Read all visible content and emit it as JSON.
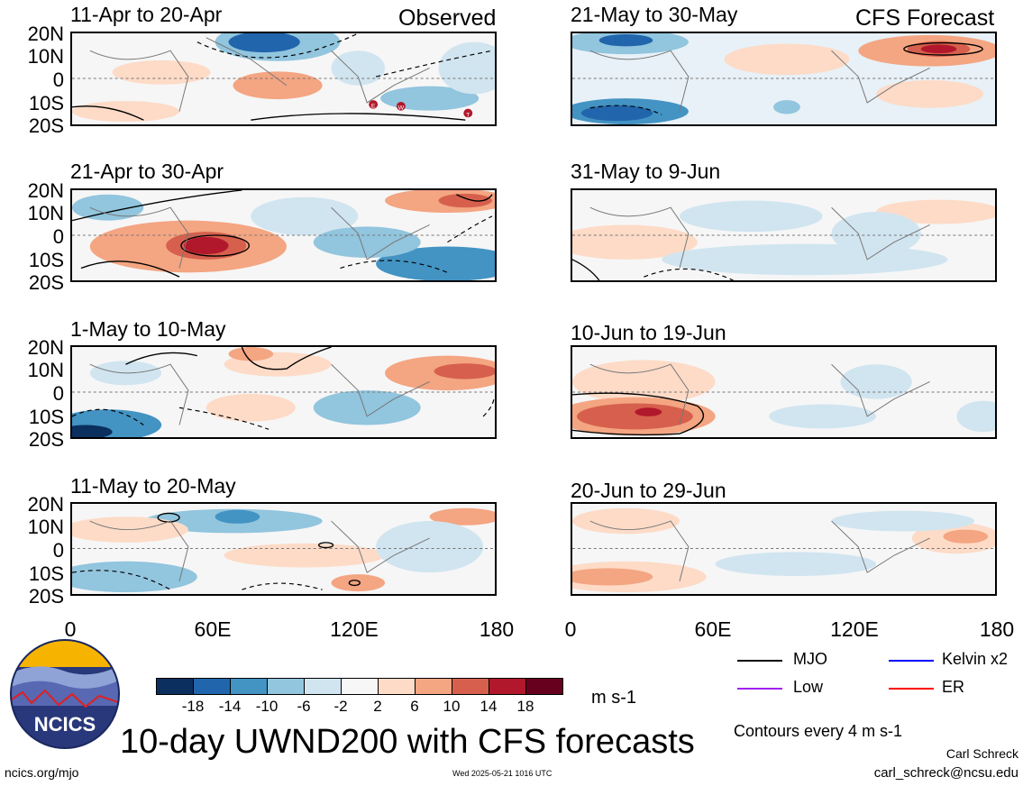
{
  "header": {
    "left_label": "Observed",
    "right_label": "CFS Forecast"
  },
  "latitude_labels": [
    "20N",
    "10N",
    "0",
    "10S",
    "20S"
  ],
  "longitude_labels": [
    "0",
    "60E",
    "120E",
    "180"
  ],
  "panels": {
    "observed": [
      {
        "period": "11-Apr to 20-Apr"
      },
      {
        "period": "21-Apr to 30-Apr"
      },
      {
        "period": "1-May to 10-May"
      },
      {
        "period": "11-May to 20-May"
      }
    ],
    "forecast": [
      {
        "period": "21-May to 30-May"
      },
      {
        "period": "31-May to 9-Jun"
      },
      {
        "period": "10-Jun to 19-Jun"
      },
      {
        "period": "20-Jun to 29-Jun"
      }
    ]
  },
  "storm_markers": [
    "E",
    "W",
    "T"
  ],
  "colorbar": {
    "labels": [
      "-18",
      "-14",
      "-10",
      "-6",
      "-2",
      "2",
      "6",
      "10",
      "14",
      "18"
    ],
    "colors": [
      "#0b2f5e",
      "#2166ac",
      "#4393c3",
      "#92c5de",
      "#d1e5f0",
      "#f7f7f7",
      "#fddbc7",
      "#f4a582",
      "#d6604d",
      "#b2182b",
      "#67001f"
    ],
    "units": "m s-1"
  },
  "legend": {
    "items": [
      {
        "label": "MJO",
        "color": "#000000"
      },
      {
        "label": "Kelvin x2",
        "color": "#0000ff"
      },
      {
        "label": "Low",
        "color": "#a020f0"
      },
      {
        "label": "ER",
        "color": "#ff0000"
      }
    ],
    "contour_note": "Contours every 4 m s-1"
  },
  "logo": {
    "text": "NCICS"
  },
  "footer": {
    "main_title": "10-day UWND200 with CFS forecasts",
    "author": "Carl Schreck",
    "email": "carl_schreck@ncsu.edu",
    "url": "ncics.org/mjo",
    "timestamp": "Wed 2025-05-21 1016 UTC"
  }
}
